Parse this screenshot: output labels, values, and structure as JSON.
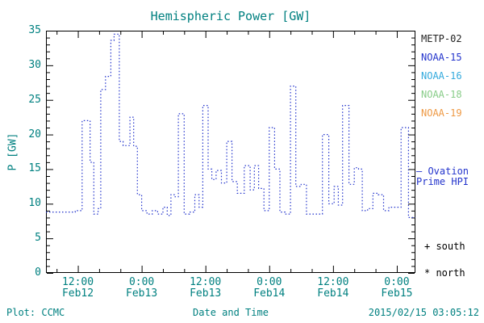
{
  "title": "Hemispheric Power [GW]",
  "footer": {
    "left": "Plot: CCMC",
    "right": "2015/02/15 03:05:12"
  },
  "legend": {
    "satellites": [
      {
        "label": "METP-02",
        "color": "#222222"
      },
      {
        "label": "NOAA-15",
        "color": "#2233cc"
      },
      {
        "label": "NOAA-16",
        "color": "#33aadd"
      },
      {
        "label": "NOAA-18",
        "color": "#88cc88"
      },
      {
        "label": "NOAA-19",
        "color": "#ee9944"
      }
    ],
    "model_line1": "– Ovation",
    "model_line2": "Prime HPI",
    "model_color": "#2233cc",
    "south": "+ south",
    "north": "* north"
  },
  "chart_data": {
    "type": "line",
    "title": "Hemispheric Power [GW]",
    "xlabel": "Date and Time",
    "ylabel": "P [GW]",
    "ylim": [
      0,
      35
    ],
    "y_major_ticks": [
      0,
      5,
      10,
      15,
      20,
      25,
      30,
      35
    ],
    "y_minor_step": 1,
    "x_total_hours": 69.5,
    "x_minor_step": 4,
    "x_ticks": [
      {
        "hour": 6,
        "time": "12:00",
        "date": "Feb12"
      },
      {
        "hour": 18,
        "time": "0:00",
        "date": "Feb13"
      },
      {
        "hour": 30,
        "time": "12:00",
        "date": "Feb13"
      },
      {
        "hour": 42,
        "time": "0:00",
        "date": "Feb14"
      },
      {
        "hour": 54,
        "time": "12:00",
        "date": "Feb14"
      },
      {
        "hour": 66,
        "time": "0:00",
        "date": "Feb15"
      }
    ],
    "grid": false,
    "legend_position": "right-outside",
    "series": [
      {
        "name": "Ovation Prime HPI",
        "color": "#2233cc",
        "style": "dotted-step",
        "units": "GW",
        "steps": [
          [
            0,
            8.8
          ],
          [
            5.5,
            9
          ],
          [
            6.8,
            22
          ],
          [
            8.3,
            16
          ],
          [
            9,
            8.5
          ],
          [
            9.8,
            9.3
          ],
          [
            10.3,
            26.5
          ],
          [
            11.2,
            28.4
          ],
          [
            12.2,
            33.6
          ],
          [
            12.8,
            34.5
          ],
          [
            13.8,
            19
          ],
          [
            14.5,
            18.4
          ],
          [
            15.8,
            22.5
          ],
          [
            16.5,
            18.3
          ],
          [
            17.2,
            11.3
          ],
          [
            18,
            9
          ],
          [
            19,
            8.5
          ],
          [
            20,
            9
          ],
          [
            21,
            8.5
          ],
          [
            22,
            9.5
          ],
          [
            22.8,
            8.3
          ],
          [
            23.5,
            11.3
          ],
          [
            24.3,
            11
          ],
          [
            24.9,
            23
          ],
          [
            26,
            8.5
          ],
          [
            27,
            8.8
          ],
          [
            28,
            11.3
          ],
          [
            28.8,
            9.5
          ],
          [
            29.5,
            24.2
          ],
          [
            30.5,
            15
          ],
          [
            31.2,
            13.5
          ],
          [
            32,
            14.8
          ],
          [
            33,
            13
          ],
          [
            34,
            19
          ],
          [
            35,
            13.2
          ],
          [
            36,
            11.5
          ],
          [
            37.3,
            15.5
          ],
          [
            38.4,
            12
          ],
          [
            39.2,
            15.5
          ],
          [
            40,
            12.2
          ],
          [
            41,
            9
          ],
          [
            42,
            21
          ],
          [
            43,
            15
          ],
          [
            44,
            8.8
          ],
          [
            45,
            8.5
          ],
          [
            46,
            27
          ],
          [
            47,
            12.5
          ],
          [
            48,
            12.8
          ],
          [
            49,
            8.5
          ],
          [
            52,
            20
          ],
          [
            53.2,
            10
          ],
          [
            54.2,
            12.5
          ],
          [
            55,
            9.8
          ],
          [
            55.8,
            24.2
          ],
          [
            57,
            12.8
          ],
          [
            58,
            15.2
          ],
          [
            58.8,
            15
          ],
          [
            59.5,
            9
          ],
          [
            60.5,
            9.3
          ],
          [
            61.5,
            11.5
          ],
          [
            62.5,
            11.3
          ],
          [
            63.5,
            9
          ],
          [
            64.5,
            9.5
          ],
          [
            66.8,
            21
          ],
          [
            68.2,
            8
          ],
          [
            69.5,
            8
          ]
        ]
      }
    ]
  }
}
